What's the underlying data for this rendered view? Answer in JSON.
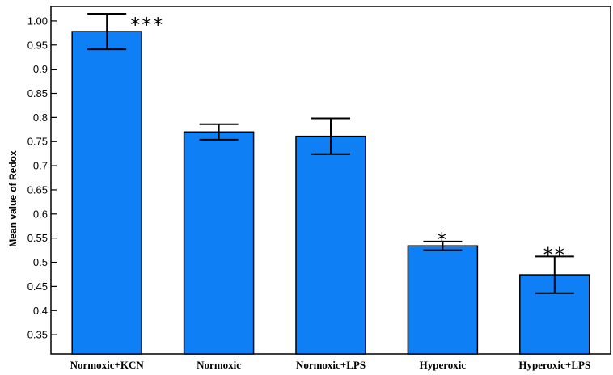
{
  "chart_data": {
    "type": "bar",
    "ylabel": "Mean value of Redox",
    "xlabel": "",
    "ylim": [
      0.31,
      1.03
    ],
    "yticks": [
      "0.35",
      "0.4",
      "0.45",
      "0.5",
      "0.55",
      "0.6",
      "0.65",
      "0.7",
      "0.75",
      "0.8",
      "0.85",
      "0.9",
      "0.95",
      "1.00"
    ],
    "categories": [
      "Normoxic+KCN",
      "Normoxic",
      "Normoxic+LPS",
      "Hyperoxic",
      "Hyperoxic+LPS"
    ],
    "values": [
      0.978,
      0.77,
      0.761,
      0.534,
      0.474
    ],
    "errors": [
      0.037,
      0.016,
      0.037,
      0.009,
      0.038
    ],
    "significance": [
      "***",
      "",
      "",
      "*",
      "**"
    ],
    "grid": false,
    "bar_color": "#0f7ff5"
  }
}
